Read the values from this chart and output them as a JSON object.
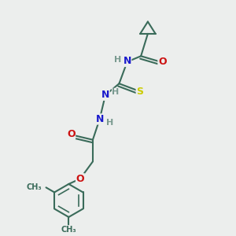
{
  "bg_color": "#eceeed",
  "atom_colors": {
    "C": "#3a6b5a",
    "N": "#1a1acc",
    "O": "#cc1111",
    "S": "#cccc00",
    "H": "#7a9a90"
  },
  "bond_color": "#3a6b5a",
  "lw": 1.5
}
